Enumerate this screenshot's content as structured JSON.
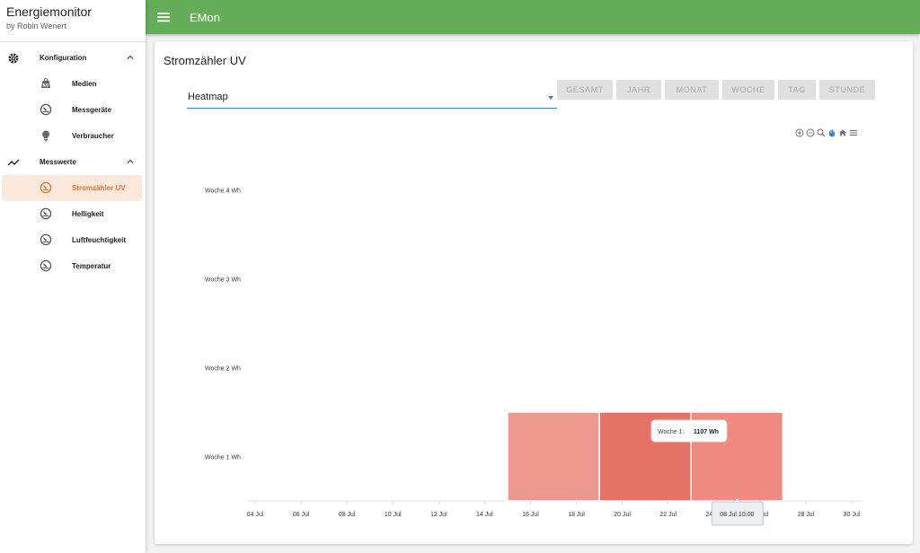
{
  "sidebar": {
    "title": "Energiemonitor",
    "subtitle": "by Robin Wenert",
    "groups": [
      {
        "label": "Konfiguration",
        "icon": "gear-icon",
        "items": [
          {
            "label": "Medien",
            "icon": "scale-icon"
          },
          {
            "label": "Messgeräte",
            "icon": "gauge-icon"
          },
          {
            "label": "Verbraucher",
            "icon": "lightbulb-icon"
          }
        ]
      },
      {
        "label": "Messwerte",
        "icon": "trend-icon",
        "items": [
          {
            "label": "Stromzähler UV",
            "icon": "gauge-icon",
            "active": true
          },
          {
            "label": "Helligkeit",
            "icon": "gauge-icon"
          },
          {
            "label": "Luftfeuchtigkeit",
            "icon": "gauge-icon"
          },
          {
            "label": "Temperatur",
            "icon": "gauge-icon"
          }
        ]
      }
    ]
  },
  "appbar": {
    "title": "EMon"
  },
  "main": {
    "card_title": "Stromzähler UV",
    "select": {
      "value": "Heatmap"
    },
    "buttons": [
      "GESAMT",
      "JAHR",
      "MONAT",
      "WOCHE",
      "TAG",
      "STUNDE"
    ],
    "toolbar": [
      "zoom-in-icon",
      "zoom-out-icon",
      "zoom-select-icon",
      "pan-hand-icon",
      "home-icon",
      "menu-icon"
    ]
  },
  "colors": {
    "appbar": "#66ad59",
    "active": "#e8702a",
    "active_bg": "#fde8dc",
    "accent": "#3f7fcf"
  },
  "chart_data": {
    "type": "heatmap",
    "y_categories": [
      "Woche 1 Wh",
      "Woche 2 Wh",
      "Woche 3 Wh",
      "Woche 4 Wh"
    ],
    "x_ticks": [
      "04 Jul",
      "06 Jul",
      "08 Jul",
      "10 Jul",
      "12 Jul",
      "14 Jul",
      "16 Jul",
      "18 Jul",
      "20 Jul",
      "22 Jul",
      "24 Jul",
      "26 Jul",
      "28 Jul",
      "30 Jul"
    ],
    "cells": [
      {
        "row": "Woche 1 Wh",
        "x_start": "2017-07-15",
        "x_end": "2017-07-19",
        "color": "#ec9a8f"
      },
      {
        "row": "Woche 1 Wh",
        "x_start": "2017-07-19",
        "x_end": "2017-07-23",
        "value": 1107,
        "color": "#e57267"
      },
      {
        "row": "Woche 1 Wh",
        "x_start": "2017-07-23",
        "x_end": "2017-07-27",
        "color": "#ee8a80"
      }
    ],
    "tooltip": {
      "label": "Woche 1:",
      "value": "1107 Wh"
    },
    "crosshair_label": "08 Jul 10:00"
  }
}
